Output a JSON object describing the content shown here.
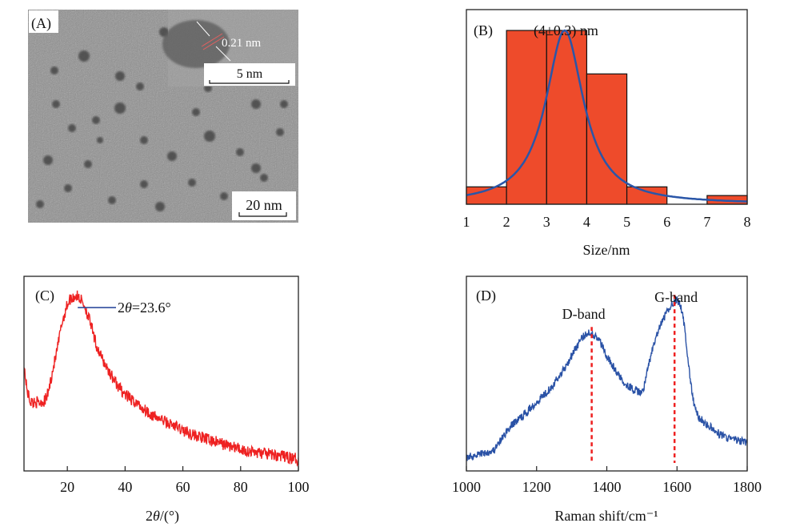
{
  "colors": {
    "histogram_fill": "#ee4b2b",
    "fit_curve": "#2a56a8",
    "xrd_line": "#ee2222",
    "raman_line": "#2a52a6",
    "marker_dash": "#ee2020",
    "annotation_line": "#1f3f95",
    "axis": "#222222"
  },
  "chart_data": [
    {
      "panel": "A",
      "type": "image",
      "label": "(A)",
      "description": "TEM micrograph of dispersed dark nanoparticles with HRTEM inset",
      "inset": {
        "lattice_spacing_label": "0.21 nm",
        "scale_bar_label": "5 nm"
      },
      "scale_bar_label": "20  nm"
    },
    {
      "panel": "B",
      "type": "bar",
      "label": "(B)",
      "title": "(4±0.3) nm",
      "xlabel": "Size/nm",
      "ylabel": "",
      "xlim": [
        1,
        8
      ],
      "ylim": [
        0,
        1.12
      ],
      "xticks": [
        "1",
        "2",
        "3",
        "4",
        "5",
        "6",
        "7",
        "8"
      ],
      "bins": [
        {
          "from": 1,
          "to": 2,
          "value": 0.1
        },
        {
          "from": 2,
          "to": 3,
          "value": 1.0
        },
        {
          "from": 3,
          "to": 4,
          "value": 1.0
        },
        {
          "from": 4,
          "to": 5,
          "value": 0.75
        },
        {
          "from": 5,
          "to": 6,
          "value": 0.1
        },
        {
          "from": 6,
          "to": 7,
          "value": 0.0
        },
        {
          "from": 7,
          "to": 8,
          "value": 0.05
        }
      ],
      "fit": {
        "type": "lorentzian",
        "center": 3.45,
        "fwhm": 1.15,
        "amplitude": 1.0,
        "baseline": 0.0
      }
    },
    {
      "panel": "C",
      "type": "line",
      "label": "(C)",
      "xlabel": "2θ/(°)",
      "ylabel": "",
      "xlim": [
        5,
        100
      ],
      "ylim": [
        0,
        1.0
      ],
      "xticks": [
        "20",
        "40",
        "60",
        "80",
        "100"
      ],
      "xtick_values": [
        20,
        40,
        60,
        80,
        100
      ],
      "annotation": {
        "text_prefix": "2",
        "text_theta": "θ",
        "text_suffix": "=23.6°",
        "x": 23.6
      },
      "series": [
        {
          "name": "XRD",
          "x": [
            5,
            6,
            7,
            8,
            9,
            10,
            11,
            12,
            13,
            14,
            15,
            16,
            17,
            18,
            19,
            20,
            21,
            22,
            23,
            24,
            25,
            26,
            27,
            28,
            29,
            30,
            32,
            34,
            36,
            38,
            40,
            42,
            44,
            46,
            48,
            50,
            52,
            55,
            58,
            60,
            63,
            66,
            70,
            74,
            78,
            82,
            86,
            90,
            94,
            97,
            100
          ],
          "y": [
            0.58,
            0.44,
            0.38,
            0.36,
            0.37,
            0.36,
            0.37,
            0.37,
            0.4,
            0.47,
            0.56,
            0.63,
            0.72,
            0.82,
            0.88,
            0.94,
            0.97,
            0.98,
            0.99,
            0.98,
            0.96,
            0.93,
            0.88,
            0.83,
            0.76,
            0.7,
            0.62,
            0.56,
            0.5,
            0.45,
            0.41,
            0.38,
            0.36,
            0.33,
            0.31,
            0.28,
            0.27,
            0.24,
            0.22,
            0.2,
            0.18,
            0.16,
            0.14,
            0.12,
            0.1,
            0.08,
            0.07,
            0.06,
            0.05,
            0.04,
            0.03
          ]
        }
      ]
    },
    {
      "panel": "D",
      "type": "line",
      "label": "(D)",
      "xlabel": "Raman shift/cm⁻¹",
      "ylabel": "",
      "xlim": [
        1000,
        1800
      ],
      "ylim": [
        0,
        1.0
      ],
      "xticks": [
        "1000",
        "1200",
        "1400",
        "1600",
        "1800"
      ],
      "xtick_values": [
        1000,
        1200,
        1400,
        1600,
        1800
      ],
      "annotations": [
        {
          "text": "D-band",
          "x": 1357
        },
        {
          "text": "G-band",
          "x": 1593
        }
      ],
      "series": [
        {
          "name": "Raman",
          "x": [
            1000,
            1020,
            1040,
            1060,
            1080,
            1100,
            1120,
            1140,
            1160,
            1180,
            1200,
            1220,
            1240,
            1260,
            1280,
            1300,
            1320,
            1340,
            1350,
            1360,
            1380,
            1400,
            1420,
            1440,
            1460,
            1480,
            1500,
            1510,
            1520,
            1540,
            1560,
            1580,
            1590,
            1600,
            1610,
            1620,
            1630,
            1640,
            1650,
            1660,
            1680,
            1700,
            1720,
            1740,
            1760,
            1780,
            1800
          ],
          "y": [
            0.05,
            0.06,
            0.07,
            0.08,
            0.09,
            0.15,
            0.21,
            0.25,
            0.28,
            0.32,
            0.36,
            0.4,
            0.44,
            0.49,
            0.55,
            0.62,
            0.69,
            0.74,
            0.75,
            0.74,
            0.7,
            0.62,
            0.55,
            0.49,
            0.45,
            0.42,
            0.41,
            0.47,
            0.58,
            0.72,
            0.82,
            0.89,
            0.92,
            0.93,
            0.9,
            0.8,
            0.62,
            0.45,
            0.33,
            0.28,
            0.24,
            0.21,
            0.18,
            0.16,
            0.15,
            0.14,
            0.13
          ]
        }
      ]
    }
  ]
}
